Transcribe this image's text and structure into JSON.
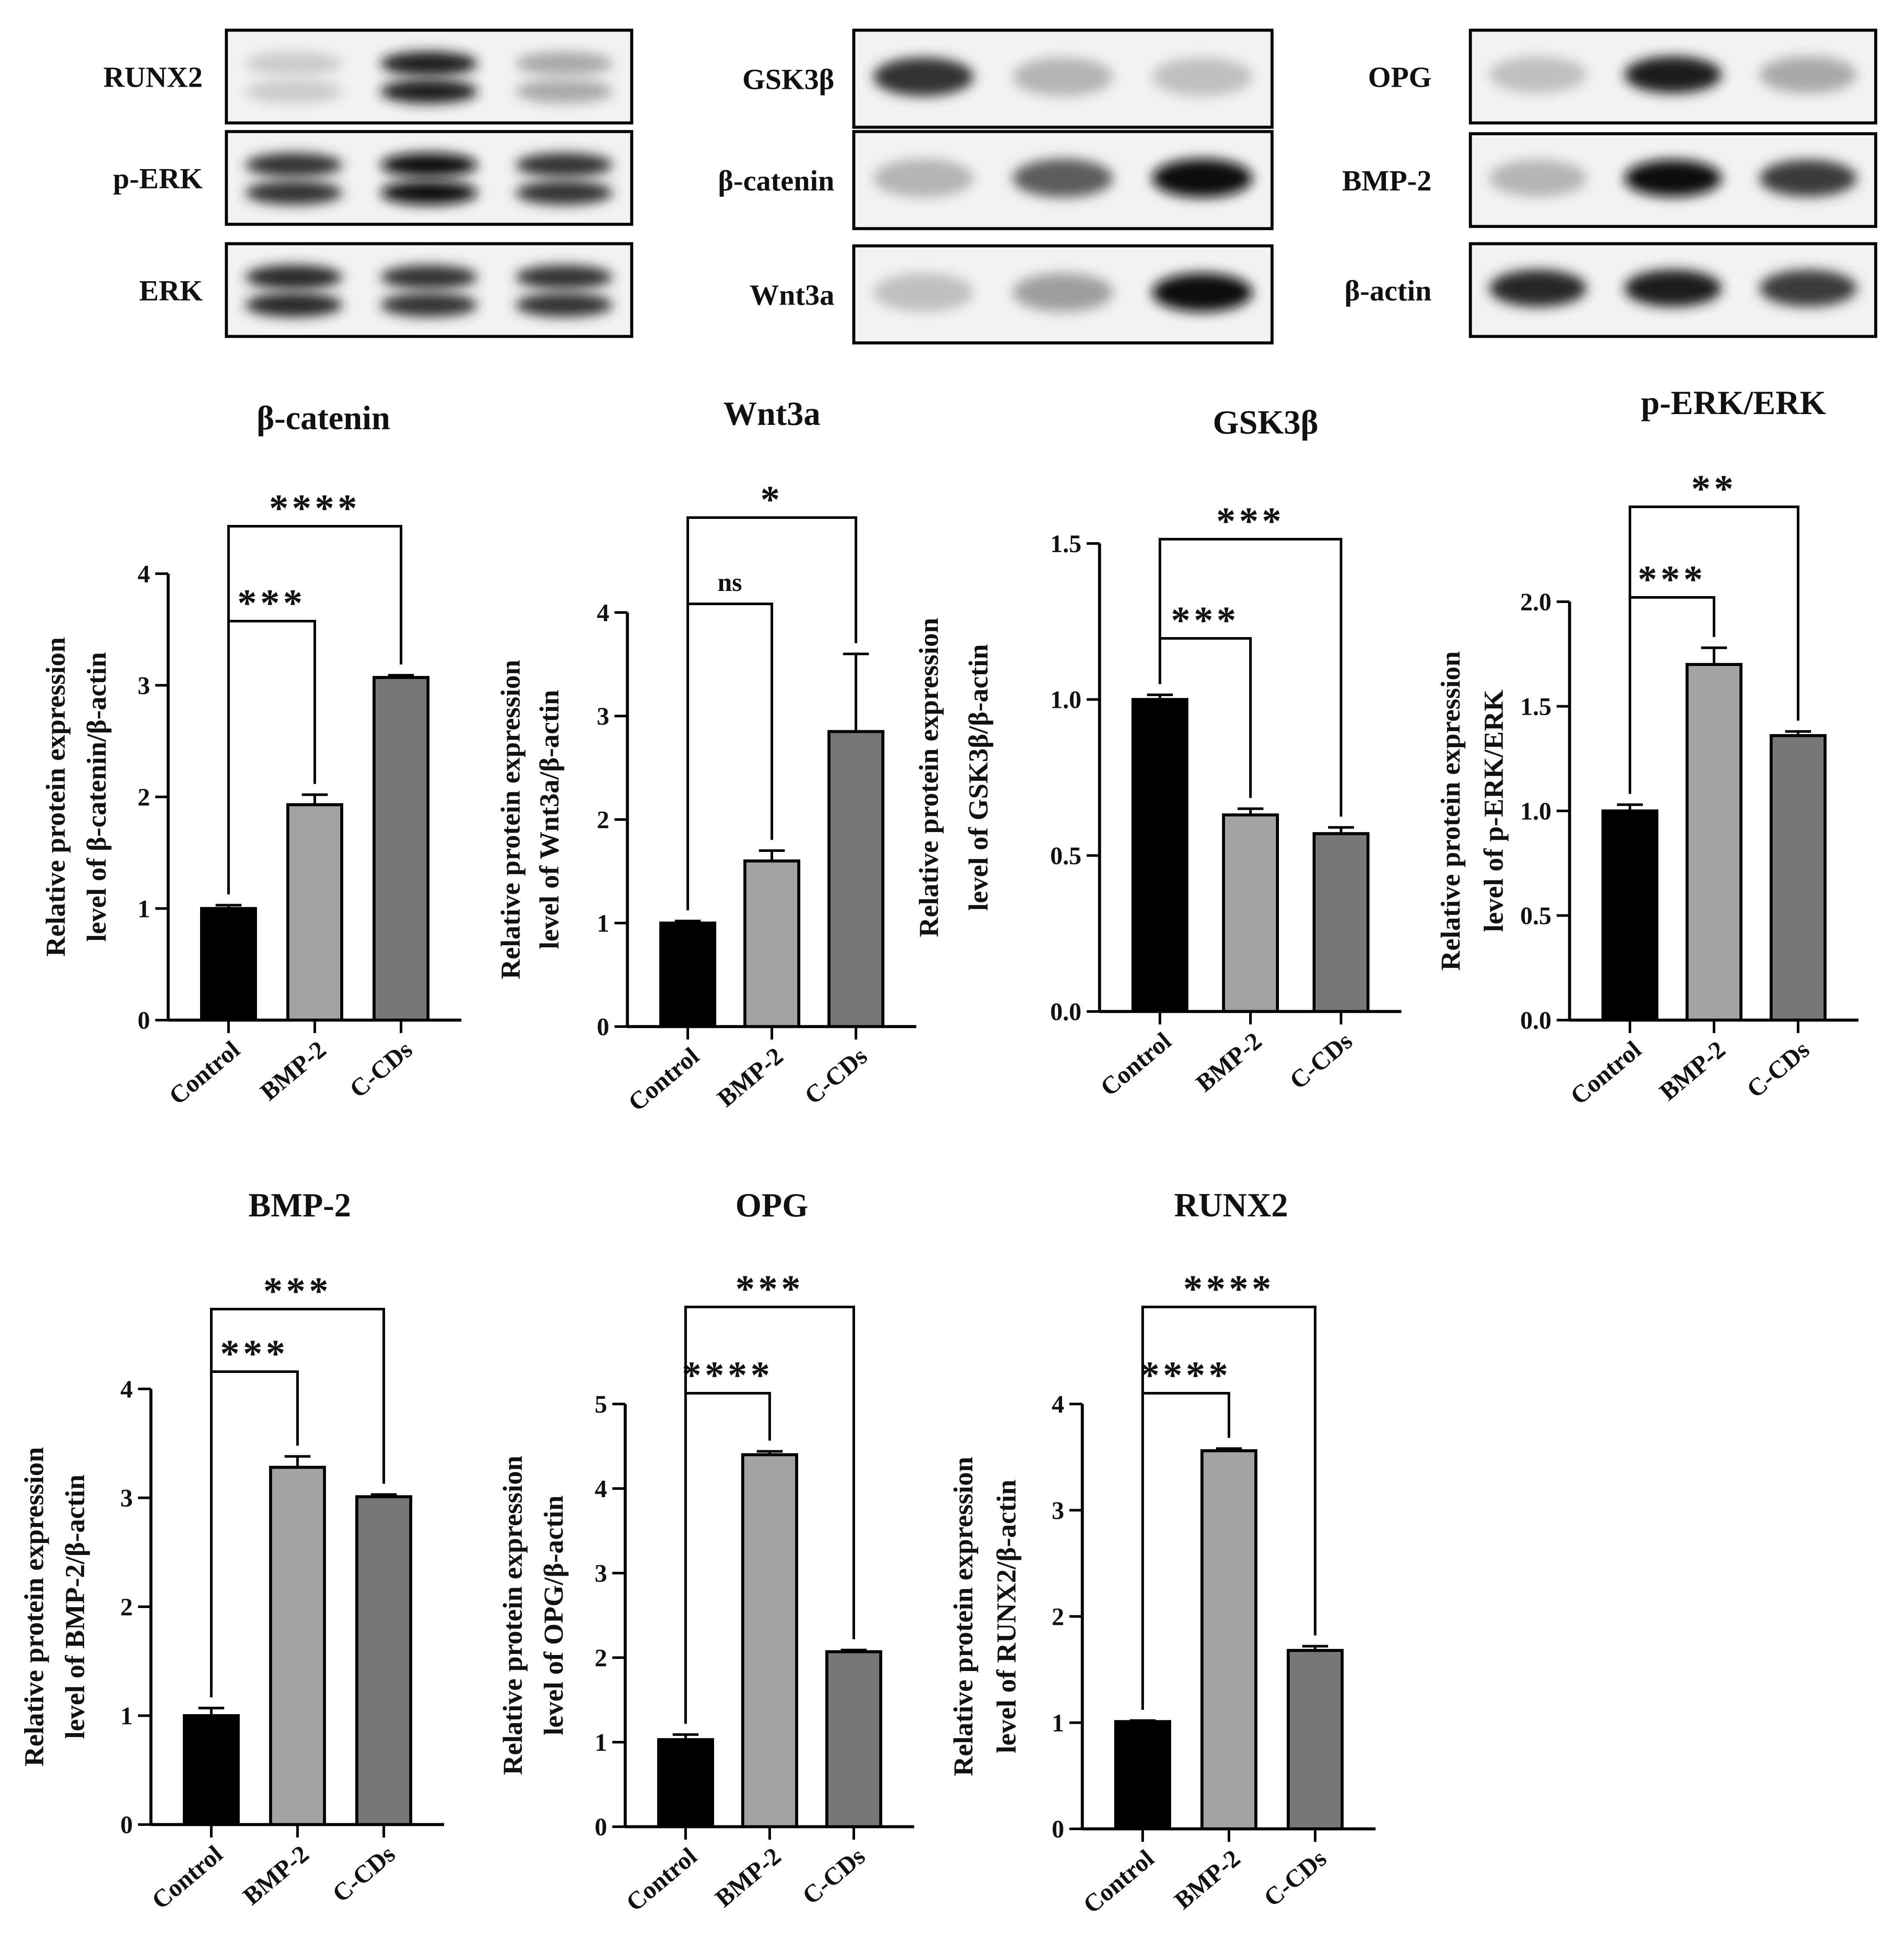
{
  "blots": [
    {
      "rows": [
        {
          "label": "RUNX2",
          "bands": [
            0.15,
            0.95,
            0.3
          ],
          "double": true
        },
        {
          "label": "p-ERK",
          "bands": [
            0.85,
            1.0,
            0.85
          ],
          "double": true
        },
        {
          "label": "ERK",
          "bands": [
            0.9,
            0.85,
            0.85
          ],
          "double": true
        }
      ]
    },
    {
      "rows": [
        {
          "label": "GSK3β",
          "bands": [
            0.85,
            0.25,
            0.2
          ],
          "double": false
        },
        {
          "label": "β-catenin",
          "bands": [
            0.25,
            0.65,
            1.0
          ],
          "double": false
        },
        {
          "label": "Wnt3a",
          "bands": [
            0.2,
            0.35,
            1.0
          ],
          "double": false
        }
      ]
    },
    {
      "rows": [
        {
          "label": "OPG",
          "bands": [
            0.2,
            0.95,
            0.3
          ],
          "double": false
        },
        {
          "label": "BMP-2",
          "bands": [
            0.25,
            1.0,
            0.8
          ],
          "double": false
        },
        {
          "label": "β-actin",
          "bands": [
            0.9,
            0.95,
            0.8
          ],
          "double": false
        }
      ]
    }
  ],
  "chart_data": [
    {
      "type": "bar",
      "title": "β-catenin",
      "ylabel_line1": "Relative protein expression",
      "ylabel_line2": "level of β-catenin/β-actin",
      "categories": [
        "Control",
        "BMP-2",
        "C-CDs"
      ],
      "values": [
        1.0,
        1.93,
        3.07
      ],
      "errors": [
        0.03,
        0.09,
        0.02
      ],
      "ylim": [
        0,
        4
      ],
      "yticks": [
        "0",
        "1",
        "2",
        "3",
        "4"
      ],
      "colors": [
        "#000000",
        "#a3a3a3",
        "#777777"
      ],
      "comparisons": [
        {
          "from": 0,
          "to": 1,
          "label": "***"
        },
        {
          "from": 0,
          "to": 2,
          "label": "****"
        }
      ]
    },
    {
      "type": "bar",
      "title": "Wnt3a",
      "ylabel_line1": "Relative protein expression",
      "ylabel_line2": "level of Wnt3a/β-actin",
      "categories": [
        "Control",
        "BMP-2",
        "C-CDs"
      ],
      "values": [
        1.0,
        1.6,
        2.85
      ],
      "errors": [
        0.02,
        0.1,
        0.75
      ],
      "ylim": [
        0,
        4
      ],
      "yticks": [
        "0",
        "1",
        "2",
        "3",
        "4"
      ],
      "colors": [
        "#000000",
        "#a3a3a3",
        "#777777"
      ],
      "comparisons": [
        {
          "from": 0,
          "to": 1,
          "label": "ns"
        },
        {
          "from": 0,
          "to": 2,
          "label": "*"
        }
      ]
    },
    {
      "type": "bar",
      "title": "GSK3β",
      "ylabel_line1": "Relative protein expression",
      "ylabel_line2": "level of GSK3β/β-actin",
      "categories": [
        "Control",
        "BMP-2",
        "C-CDs"
      ],
      "values": [
        1.0,
        0.63,
        0.57
      ],
      "errors": [
        0.015,
        0.02,
        0.02
      ],
      "ylim": [
        0,
        1.5
      ],
      "yticks": [
        "0.0",
        "0.5",
        "1.0",
        "1.5"
      ],
      "colors": [
        "#000000",
        "#a3a3a3",
        "#777777"
      ],
      "comparisons": [
        {
          "from": 0,
          "to": 1,
          "label": "***"
        },
        {
          "from": 0,
          "to": 2,
          "label": "***"
        }
      ]
    },
    {
      "type": "bar",
      "title": "p-ERK/ERK",
      "ylabel_line1": "Relative protein expression",
      "ylabel_line2": "level of p-ERK/ERK",
      "categories": [
        "Control",
        "BMP-2",
        "C-CDs"
      ],
      "values": [
        1.0,
        1.7,
        1.36
      ],
      "errors": [
        0.03,
        0.08,
        0.02
      ],
      "ylim": [
        0,
        2.0
      ],
      "yticks": [
        "0.0",
        "0.5",
        "1.0",
        "1.5",
        "2.0"
      ],
      "colors": [
        "#000000",
        "#a3a3a3",
        "#777777"
      ],
      "comparisons": [
        {
          "from": 0,
          "to": 1,
          "label": "***"
        },
        {
          "from": 0,
          "to": 2,
          "label": "**"
        }
      ]
    },
    {
      "type": "bar",
      "title": "BMP-2",
      "ylabel_line1": "Relative protein expression",
      "ylabel_line2": "level of BMP-2/β-actin",
      "categories": [
        "Control",
        "BMP-2",
        "C-CDs"
      ],
      "values": [
        1.0,
        3.28,
        3.01
      ],
      "errors": [
        0.07,
        0.1,
        0.02
      ],
      "ylim": [
        0,
        4
      ],
      "yticks": [
        "0",
        "1",
        "2",
        "3",
        "4"
      ],
      "colors": [
        "#000000",
        "#a3a3a3",
        "#777777"
      ],
      "comparisons": [
        {
          "from": 0,
          "to": 1,
          "label": "***"
        },
        {
          "from": 0,
          "to": 2,
          "label": "***"
        }
      ]
    },
    {
      "type": "bar",
      "title": "OPG",
      "ylabel_line1": "Relative protein expression",
      "ylabel_line2": "level of OPG/β-actin",
      "categories": [
        "Control",
        "BMP-2",
        "C-CDs"
      ],
      "values": [
        1.03,
        4.4,
        2.07
      ],
      "errors": [
        0.06,
        0.04,
        0.02
      ],
      "ylim": [
        0,
        5
      ],
      "yticks": [
        "0",
        "1",
        "2",
        "3",
        "4",
        "5"
      ],
      "colors": [
        "#000000",
        "#a3a3a3",
        "#777777"
      ],
      "comparisons": [
        {
          "from": 0,
          "to": 1,
          "label": "****"
        },
        {
          "from": 0,
          "to": 2,
          "label": "***"
        }
      ]
    },
    {
      "type": "bar",
      "title": "RUNX2",
      "ylabel_line1": "Relative protein expression",
      "ylabel_line2": "level of RUNX2/β-actin",
      "categories": [
        "Control",
        "BMP-2",
        "C-CDs"
      ],
      "values": [
        1.01,
        3.56,
        1.68
      ],
      "errors": [
        0.01,
        0.02,
        0.04
      ],
      "ylim": [
        0,
        4
      ],
      "yticks": [
        "0",
        "1",
        "2",
        "3",
        "4"
      ],
      "colors": [
        "#000000",
        "#a3a3a3",
        "#777777"
      ],
      "comparisons": [
        {
          "from": 0,
          "to": 1,
          "label": "****"
        },
        {
          "from": 0,
          "to": 2,
          "label": "****"
        }
      ]
    }
  ]
}
